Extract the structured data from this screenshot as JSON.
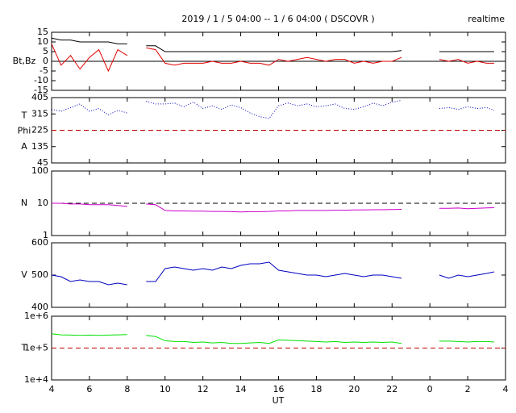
{
  "title": "2019 / 1 / 5  04:00 -- 1 / 6  04:00 ( DSCOVR )",
  "subtitle": "realtime",
  "xlabel": "UT",
  "chart_data": [
    {
      "type": "line",
      "ylabel": [
        "Bt,Bz"
      ],
      "xlim": [
        4,
        28
      ],
      "ylim": [
        -15,
        15
      ],
      "yticks": [
        15,
        10,
        5,
        0,
        -5,
        -10,
        -15
      ],
      "ref_lines": [
        {
          "value": 0,
          "color": "#000000",
          "style": "solid"
        }
      ],
      "x": [
        4,
        4.5,
        5,
        5.5,
        6,
        6.5,
        7,
        7.5,
        8,
        8.5,
        9,
        9.5,
        10,
        10.5,
        11,
        11.5,
        12,
        12.5,
        13,
        13.5,
        14,
        14.5,
        15,
        15.5,
        16,
        16.5,
        17,
        17.5,
        18,
        18.5,
        19,
        19.5,
        20,
        20.5,
        21,
        21.5,
        22,
        22.5,
        23,
        23.5,
        24,
        24.5,
        25,
        25.5,
        26,
        26.5,
        27,
        27.4
      ],
      "series": [
        {
          "name": "Bt",
          "color": "#000000",
          "style": "solid",
          "values": [
            12,
            11,
            11,
            10,
            10,
            10,
            10,
            9,
            9,
            null,
            8,
            8,
            5,
            5,
            5,
            5,
            5,
            5,
            5,
            5,
            5,
            5,
            5,
            5,
            5,
            5,
            5,
            5,
            5,
            5,
            5,
            5,
            5,
            5,
            5,
            5,
            5,
            5.5,
            null,
            null,
            null,
            5,
            5,
            5,
            5,
            5,
            5,
            5
          ]
        },
        {
          "name": "Bz",
          "color": "#e00000",
          "style": "solid",
          "values": [
            9,
            -2,
            3,
            -4,
            2,
            6,
            -5,
            6,
            3,
            null,
            7,
            6,
            -1,
            -2,
            -1,
            -1,
            -1,
            0,
            -1,
            -1,
            0,
            -1,
            -1,
            -2,
            1,
            0,
            1,
            2,
            1,
            0,
            1,
            1,
            -1,
            0,
            -1,
            0,
            0,
            2,
            null,
            null,
            null,
            1,
            0,
            1,
            -1,
            0,
            -1,
            -1
          ]
        }
      ]
    },
    {
      "type": "line",
      "ylabel": [
        "T",
        "Phi",
        "A"
      ],
      "xlim": [
        4,
        28
      ],
      "ylim": [
        45,
        405
      ],
      "yticks": [
        405,
        315,
        225,
        135,
        45
      ],
      "ref_lines": [
        {
          "value": 225,
          "color": "#c00000",
          "style": "dashed"
        }
      ],
      "x": [
        4,
        4.5,
        5,
        5.5,
        6,
        6.5,
        7,
        7.5,
        8,
        8.5,
        9,
        9.5,
        10,
        10.5,
        11,
        11.5,
        12,
        12.5,
        13,
        13.5,
        14,
        14.5,
        15,
        15.5,
        16,
        16.5,
        17,
        17.5,
        18,
        18.5,
        19,
        19.5,
        20,
        20.5,
        21,
        21.5,
        22,
        22.5,
        23,
        23.5,
        24,
        24.5,
        25,
        25.5,
        26,
        26.5,
        27,
        27.4
      ],
      "series": [
        {
          "name": "Phi",
          "color": "#0000c0",
          "style": "dotted",
          "values": [
            340,
            330,
            350,
            370,
            330,
            345,
            310,
            335,
            320,
            null,
            385,
            370,
            370,
            375,
            355,
            380,
            345,
            360,
            340,
            365,
            350,
            320,
            300,
            290,
            360,
            375,
            360,
            370,
            355,
            360,
            370,
            345,
            340,
            355,
            375,
            360,
            380,
            390,
            null,
            null,
            null,
            345,
            350,
            340,
            355,
            345,
            350,
            335
          ]
        }
      ]
    },
    {
      "type": "line",
      "ylabel": [
        "N"
      ],
      "xlim": [
        4,
        28
      ],
      "yscale": "log",
      "ylim": [
        1,
        100
      ],
      "yticks": [
        100,
        10,
        1
      ],
      "ref_lines": [
        {
          "value": 10,
          "color": "#000000",
          "style": "dashed"
        }
      ],
      "x": [
        4,
        4.5,
        5,
        5.5,
        6,
        6.5,
        7,
        7.5,
        8,
        8.5,
        9,
        9.5,
        10,
        10.5,
        11,
        11.5,
        12,
        12.5,
        13,
        13.5,
        14,
        14.5,
        15,
        15.5,
        16,
        16.5,
        17,
        17.5,
        18,
        18.5,
        19,
        19.5,
        20,
        20.5,
        21,
        21.5,
        22,
        22.5,
        23,
        23.5,
        24,
        24.5,
        25,
        25.5,
        26,
        26.5,
        27,
        27.4
      ],
      "series": [
        {
          "name": "N",
          "color": "#cc00cc",
          "style": "solid",
          "values": [
            10,
            10,
            9.5,
            9.5,
            9,
            9,
            9,
            8.5,
            8,
            null,
            9.5,
            9,
            6,
            5.8,
            5.8,
            5.7,
            5.7,
            5.6,
            5.6,
            5.5,
            5.4,
            5.5,
            5.5,
            5.6,
            5.8,
            5.8,
            6,
            6,
            6,
            6,
            6.1,
            6.1,
            6.2,
            6.2,
            6.3,
            6.3,
            6.4,
            6.5,
            null,
            null,
            null,
            7,
            7,
            7.1,
            6.8,
            7,
            7.2,
            7.3
          ]
        }
      ]
    },
    {
      "type": "line",
      "ylabel": [
        "V"
      ],
      "xlim": [
        4,
        28
      ],
      "ylim": [
        400,
        600
      ],
      "yticks": [
        600,
        500,
        400
      ],
      "ref_lines": [],
      "x": [
        4,
        4.5,
        5,
        5.5,
        6,
        6.5,
        7,
        7.5,
        8,
        8.5,
        9,
        9.5,
        10,
        10.5,
        11,
        11.5,
        12,
        12.5,
        13,
        13.5,
        14,
        14.5,
        15,
        15.5,
        16,
        16.5,
        17,
        17.5,
        18,
        18.5,
        19,
        19.5,
        20,
        20.5,
        21,
        21.5,
        22,
        22.5,
        23,
        23.5,
        24,
        24.5,
        25,
        25.5,
        26,
        26.5,
        27,
        27.4
      ],
      "series": [
        {
          "name": "V",
          "color": "#0000c0",
          "style": "solid",
          "values": [
            500,
            495,
            480,
            485,
            480,
            480,
            470,
            475,
            470,
            null,
            480,
            480,
            520,
            525,
            520,
            515,
            520,
            515,
            525,
            520,
            530,
            535,
            535,
            540,
            515,
            510,
            505,
            500,
            500,
            495,
            500,
            505,
            500,
            495,
            500,
            500,
            495,
            490,
            null,
            null,
            null,
            500,
            490,
            500,
            495,
            500,
            505,
            510
          ]
        }
      ]
    },
    {
      "type": "line",
      "ylabel": [
        "T"
      ],
      "xlim": [
        4,
        28
      ],
      "yscale": "log",
      "ylim": [
        10000,
        1000000
      ],
      "yticks": [
        {
          "value": 1000000,
          "label": "1e+6"
        },
        {
          "value": 100000,
          "label": "1e+5"
        },
        {
          "value": 10000,
          "label": "1e+4"
        }
      ],
      "xticks": [
        4,
        6,
        8,
        10,
        12,
        14,
        16,
        18,
        20,
        22,
        {
          "value": 24,
          "label": "0"
        },
        {
          "value": 26,
          "label": "2"
        },
        {
          "value": 28,
          "label": "4"
        }
      ],
      "ref_lines": [
        {
          "value": 100000,
          "color": "#c00000",
          "style": "dashed"
        }
      ],
      "x": [
        4,
        4.5,
        5,
        5.5,
        6,
        6.5,
        7,
        7.5,
        8,
        8.5,
        9,
        9.5,
        10,
        10.5,
        11,
        11.5,
        12,
        12.5,
        13,
        13.5,
        14,
        14.5,
        15,
        15.5,
        16,
        16.5,
        17,
        17.5,
        18,
        18.5,
        19,
        19.5,
        20,
        20.5,
        21,
        21.5,
        22,
        22.5,
        23,
        23.5,
        24,
        24.5,
        25,
        25.5,
        26,
        26.5,
        27,
        27.4
      ],
      "series": [
        {
          "name": "T",
          "color": "#00e000",
          "style": "solid",
          "values": [
            280000,
            260000,
            255000,
            250000,
            255000,
            250000,
            255000,
            260000,
            265000,
            null,
            250000,
            230000,
            170000,
            160000,
            160000,
            150000,
            155000,
            145000,
            150000,
            140000,
            140000,
            145000,
            150000,
            140000,
            180000,
            175000,
            170000,
            165000,
            160000,
            155000,
            160000,
            150000,
            155000,
            150000,
            155000,
            150000,
            155000,
            140000,
            null,
            null,
            null,
            165000,
            165000,
            160000,
            155000,
            160000,
            160000,
            155000
          ]
        }
      ]
    }
  ]
}
